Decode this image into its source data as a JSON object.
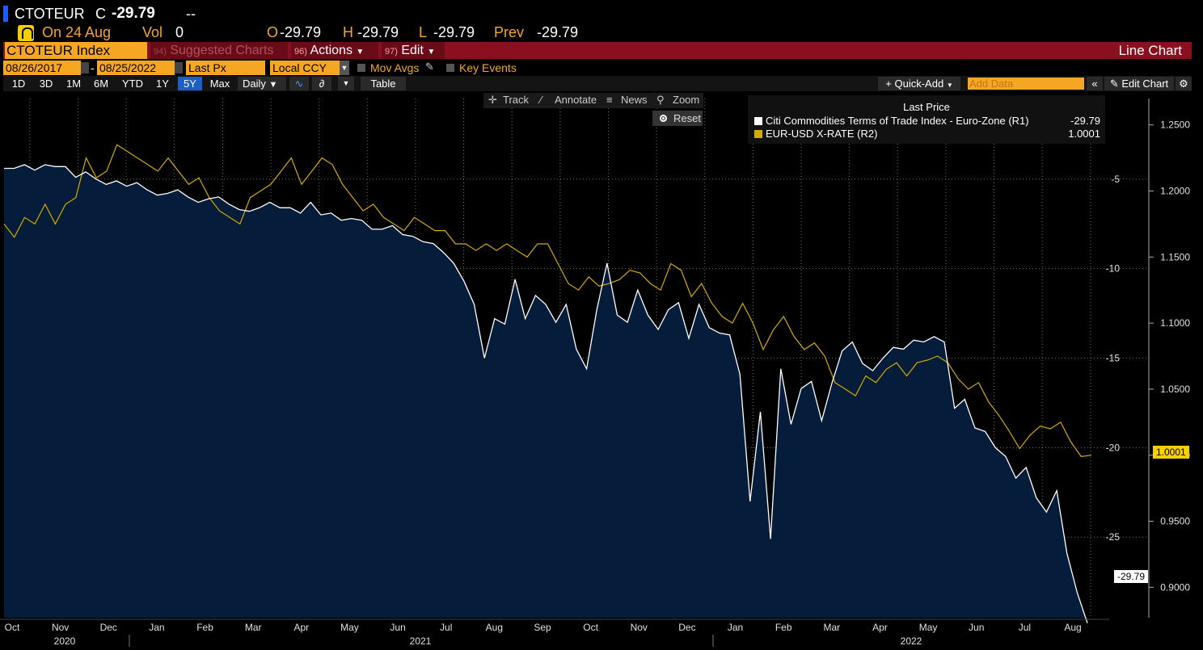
{
  "quote": {
    "ticker": "CTOTEUR",
    "close_label": "C",
    "close_value": "-29.79",
    "change": "--",
    "on_date": "On 24 Aug",
    "vol_label": "Vol",
    "vol_value": "0",
    "open_label": "O",
    "open_value": "-29.79",
    "high_label": "H",
    "high_value": "-29.79",
    "low_label": "L",
    "low_value": "-29.79",
    "prev_label": "Prev",
    "prev_value": "-29.79"
  },
  "toolbar": {
    "security": "CTOTEUR Index",
    "suggested_num": "94)",
    "suggested_label": "Suggested Charts",
    "actions_num": "96)",
    "actions_label": "Actions",
    "edit_num": "97)",
    "edit_label": "Edit",
    "view_title": "Line Chart"
  },
  "settings": {
    "start_date": "08/26/2017",
    "end_date": "08/25/2022",
    "field": "Last Px",
    "currency": "Local CCY",
    "mov_avgs": "Mov Avgs",
    "key_events": "Key Events"
  },
  "ranges": {
    "buttons": [
      "1D",
      "3D",
      "1M",
      "6M",
      "YTD",
      "1Y",
      "5Y",
      "Max"
    ],
    "active": "5Y",
    "frequency": "Daily",
    "table": "Table",
    "quick_add": "Quick-Add",
    "add_data_placeholder": "Add Data",
    "edit_chart": "Edit Chart"
  },
  "chart_tools": {
    "track": "Track",
    "annotate": "Annotate",
    "news": "News",
    "zoom": "Zoom",
    "reset": "Reset"
  },
  "legend": {
    "title": "Last Price",
    "items": [
      {
        "name": "Citi Commodities Terms of Trade Index - Euro-Zone  (R1)",
        "value": "-29.79",
        "color": "#ffffff"
      },
      {
        "name": "EUR-USD X-RATE  (R2)",
        "value": "1.0001",
        "color": "#d4a900"
      }
    ]
  },
  "chart_data": {
    "type": "line",
    "x_month_labels": [
      "Oct",
      "Nov",
      "Dec",
      "Jan",
      "Feb",
      "Mar",
      "Apr",
      "May",
      "Jun",
      "Jul",
      "Aug",
      "Sep",
      "Oct",
      "Nov",
      "Dec",
      "Jan",
      "Feb",
      "Mar",
      "Apr",
      "May",
      "Jun",
      "Jul",
      "Aug"
    ],
    "x_year_labels": [
      "2020",
      "2021",
      "2022"
    ],
    "axis_r1": {
      "ticks": [
        -5,
        -10,
        -15,
        -20,
        -25
      ],
      "tick_labels": [
        "-5",
        "-10",
        "-15",
        "-20",
        "-25"
      ],
      "range": [
        -29.5,
        -0.5
      ]
    },
    "axis_r2": {
      "ticks": [
        1.25,
        1.2,
        1.15,
        1.1,
        1.05,
        1.0,
        0.95,
        0.9
      ],
      "tick_labels": [
        "1.2500",
        "1.2000",
        "1.1500",
        "1.1000",
        "1.0500",
        "1.0000",
        "0.9500",
        "0.9000"
      ],
      "range": [
        0.877,
        1.27
      ]
    },
    "last_labels": {
      "r1": "-29.79",
      "r2": "1.0001"
    },
    "series": [
      {
        "name": "Citi Commodities Terms of Trade Index - Euro-Zone",
        "axis": "R1",
        "style": "area",
        "color": "#ffffff",
        "fill": "#051d3a",
        "values": [
          -4.4,
          -4.4,
          -4.2,
          -4.5,
          -4.2,
          -4.3,
          -4.3,
          -4.9,
          -4.6,
          -5.0,
          -5.3,
          -5.1,
          -5.4,
          -5.2,
          -5.6,
          -5.9,
          -5.8,
          -5.6,
          -6.0,
          -6.3,
          -6.1,
          -6.0,
          -6.4,
          -6.7,
          -6.8,
          -6.6,
          -6.3,
          -6.6,
          -6.6,
          -6.9,
          -6.3,
          -7.0,
          -6.9,
          -7.3,
          -7.2,
          -7.3,
          -7.8,
          -7.8,
          -7.6,
          -8.1,
          -8.2,
          -8.5,
          -8.6,
          -9.1,
          -9.7,
          -10.7,
          -12.0,
          -15.0,
          -12.8,
          -13.1,
          -10.6,
          -12.8,
          -11.5,
          -12.0,
          -13.0,
          -12.0,
          -14.5,
          -15.6,
          -12.3,
          -9.7,
          -12.6,
          -13.0,
          -11.2,
          -12.6,
          -13.4,
          -12.3,
          -11.9,
          -13.9,
          -12.0,
          -13.3,
          -13.6,
          -13.7,
          -15.9,
          -23.0,
          -18.0,
          -25.1,
          -15.6,
          -18.7,
          -16.7,
          -16.3,
          -18.5,
          -16.4,
          -14.6,
          -14.1,
          -15.3,
          -15.7,
          -15.0,
          -14.4,
          -14.5,
          -14.0,
          -14.1,
          -13.8,
          -14.1,
          -17.8,
          -17.3,
          -18.9,
          -19.1,
          -20.0,
          -20.5,
          -21.7,
          -21.1,
          -22.8,
          -23.6,
          -22.4,
          -25.9,
          -28.1,
          -29.8
        ]
      },
      {
        "name": "EUR-USD X-RATE",
        "axis": "R2",
        "style": "line",
        "color": "#d4a900",
        "values": [
          1.175,
          1.165,
          1.18,
          1.175,
          1.19,
          1.175,
          1.19,
          1.195,
          1.225,
          1.21,
          1.215,
          1.235,
          1.23,
          1.225,
          1.22,
          1.215,
          1.225,
          1.215,
          1.205,
          1.21,
          1.195,
          1.185,
          1.18,
          1.175,
          1.195,
          1.2,
          1.205,
          1.215,
          1.225,
          1.205,
          1.215,
          1.225,
          1.22,
          1.205,
          1.195,
          1.185,
          1.19,
          1.18,
          1.175,
          1.17,
          1.18,
          1.175,
          1.17,
          1.17,
          1.16,
          1.16,
          1.155,
          1.16,
          1.155,
          1.16,
          1.155,
          1.15,
          1.16,
          1.16,
          1.145,
          1.13,
          1.125,
          1.135,
          1.128,
          1.13,
          1.133,
          1.14,
          1.138,
          1.13,
          1.125,
          1.145,
          1.14,
          1.12,
          1.13,
          1.115,
          1.105,
          1.1,
          1.115,
          1.1,
          1.08,
          1.095,
          1.105,
          1.09,
          1.08,
          1.085,
          1.075,
          1.055,
          1.05,
          1.045,
          1.06,
          1.055,
          1.065,
          1.07,
          1.06,
          1.07,
          1.072,
          1.075,
          1.07,
          1.058,
          1.05,
          1.055,
          1.04,
          1.03,
          1.018,
          1.005,
          1.015,
          1.022,
          1.02,
          1.025,
          1.01,
          0.999,
          1.0
        ]
      }
    ]
  }
}
